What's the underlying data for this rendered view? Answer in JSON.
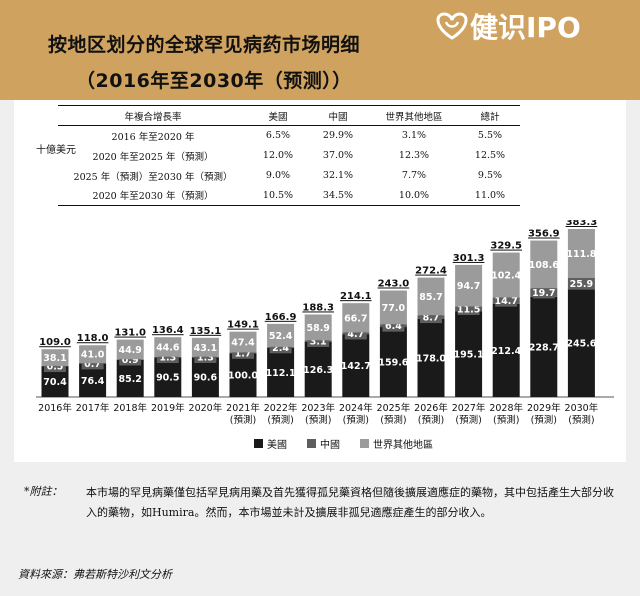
{
  "title_line1": "按地区划分的全球罕见病药市场明细",
  "title_line2": "（2016年至2030年（预测））",
  "brand": "健识IPO",
  "unit_label": "十億美元",
  "cagr_table": {
    "headers": [
      "年複合增長率",
      "美國",
      "中國",
      "世界其他地區",
      "總計"
    ],
    "rows": [
      [
        "2016 年至2020 年",
        "6.5%",
        "29.9%",
        "3.1%",
        "5.5%"
      ],
      [
        "2020 年至2025 年（預測）",
        "12.0%",
        "37.0%",
        "12.3%",
        "12.5%"
      ],
      [
        "2025 年（預測）至2030 年（預測）",
        "9.0%",
        "32.1%",
        "7.7%",
        "9.5%"
      ],
      [
        "2020 年至2030 年（預測）",
        "10.5%",
        "34.5%",
        "10.0%",
        "11.0%"
      ]
    ]
  },
  "chart_data": {
    "type": "bar",
    "stacked": true,
    "categories": [
      "2016年",
      "2017年",
      "2018年",
      "2019年",
      "2020年",
      "2021年\n(預測)",
      "2022年\n(預測)",
      "2023年\n(預測)",
      "2024年\n(預測)",
      "2025年\n(預測)",
      "2026年\n(預測)",
      "2027年\n(預測)",
      "2028年\n(預測)",
      "2029年\n(預測)",
      "2030年\n(預測)"
    ],
    "series": [
      {
        "name": "美國",
        "color": "#1a1a1a",
        "values": [
          70.4,
          76.4,
          85.2,
          90.5,
          90.6,
          100.0,
          112.1,
          126.3,
          142.7,
          159.6,
          178.0,
          195.1,
          212.4,
          228.7,
          245.6
        ]
      },
      {
        "name": "中國",
        "color": "#5e5e5e",
        "values": [
          0.5,
          0.7,
          0.9,
          1.3,
          1.3,
          1.7,
          2.4,
          3.1,
          4.7,
          6.4,
          8.7,
          11.5,
          14.7,
          19.7,
          25.9
        ]
      },
      {
        "name": "世界其他地區",
        "color": "#9b9b9b",
        "values": [
          38.1,
          41.0,
          44.9,
          44.6,
          43.1,
          47.4,
          52.4,
          58.9,
          66.7,
          77.0,
          85.7,
          94.7,
          102.4,
          108.6,
          111.8
        ]
      }
    ],
    "totals": [
      109.0,
      118.0,
      131.0,
      136.4,
      135.1,
      149.1,
      166.9,
      188.3,
      214.1,
      243.0,
      272.4,
      301.3,
      329.5,
      356.9,
      383.3
    ],
    "value_labels": {
      "美國": [
        "70.4",
        "76.4",
        "85.2",
        "90.5",
        "90.6",
        "100.0",
        "112.1",
        "126.3",
        "142.7",
        "159.6",
        "178.0",
        "195.1",
        "212.4",
        "228.7",
        "245.6"
      ],
      "中國": [
        "0.5",
        "0.7",
        "0.9",
        "1.3",
        "1.3",
        "1.7",
        "2.4",
        "3.1",
        "4.7",
        "6.4",
        "8.7",
        "11.5",
        "14.7",
        "19.7",
        "25.9"
      ],
      "世界其他地區": [
        "38.1",
        "41.0",
        "44.9",
        "44.6",
        "43.1",
        "47.4",
        "52.4",
        "58.9",
        "66.7",
        "77.0",
        "85.7",
        "94.7",
        "102.4",
        "108.6",
        "111.8"
      ],
      "totals": [
        "109.0",
        "118.0",
        "131.0",
        "136.4",
        "135.1",
        "149.1",
        "166.9",
        "188.3",
        "214.1",
        "243.0",
        "272.4",
        "301.3",
        "329.5",
        "356.9",
        "383.3"
      ]
    },
    "ylim": [
      0,
      383.3
    ],
    "xlabel": "",
    "ylabel": "",
    "legend_position": "bottom"
  },
  "note_label": "*附註：",
  "note_text": "本市場的罕見病藥僅包括罕見病用藥及首先獲得孤兒藥資格但隨後擴展適應症的藥物，其中包括產生大部分收入的藥物，如Humira。然而，本市場並未計及擴展非孤兒適應症產生的部分收入。",
  "source": "資料來源：弗若斯特沙利文分析"
}
